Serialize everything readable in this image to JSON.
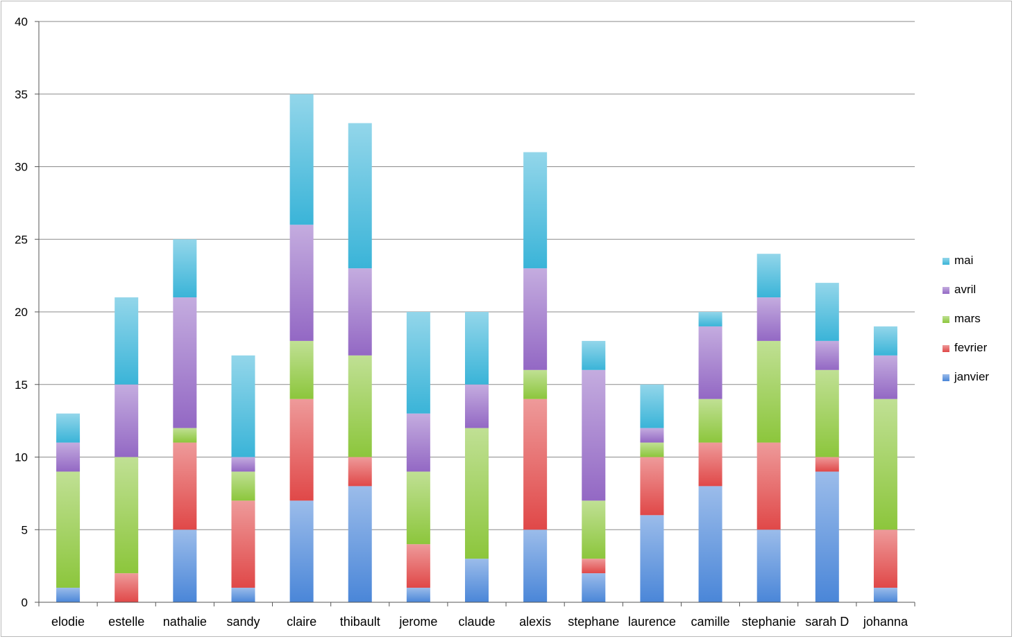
{
  "chart_data": {
    "type": "bar",
    "stacked": true,
    "title": "",
    "xlabel": "",
    "ylabel": "",
    "ylim": [
      0,
      40
    ],
    "yticks": [
      0,
      5,
      10,
      15,
      20,
      25,
      30,
      35,
      40
    ],
    "grid": true,
    "legend": "right",
    "categories": [
      "elodie",
      "estelle",
      "nathalie",
      "sandy",
      "claire",
      "thibault",
      "jerome",
      "claude",
      "alexis",
      "stephane",
      "laurence",
      "camille",
      "stephanie",
      "sarah D",
      "johanna"
    ],
    "series": [
      {
        "name": "janvier",
        "color": "#4a86d8",
        "values": [
          1,
          0,
          5,
          1,
          7,
          8,
          1,
          3,
          5,
          2,
          6,
          8,
          5,
          9,
          1
        ]
      },
      {
        "name": "fevrier",
        "color": "#e04848",
        "values": [
          0,
          2,
          6,
          6,
          7,
          2,
          3,
          0,
          9,
          1,
          4,
          3,
          6,
          1,
          4
        ]
      },
      {
        "name": "mars",
        "color": "#8cc63c",
        "values": [
          8,
          8,
          1,
          2,
          4,
          7,
          5,
          9,
          2,
          4,
          1,
          3,
          7,
          6,
          9
        ]
      },
      {
        "name": "avril",
        "color": "#9368c4",
        "values": [
          2,
          5,
          9,
          1,
          8,
          6,
          4,
          3,
          7,
          9,
          1,
          5,
          3,
          2,
          3
        ]
      },
      {
        "name": "mai",
        "color": "#3ab4d8",
        "values": [
          2,
          6,
          4,
          7,
          9,
          10,
          7,
          5,
          8,
          2,
          3,
          1,
          3,
          4,
          2
        ]
      }
    ]
  }
}
